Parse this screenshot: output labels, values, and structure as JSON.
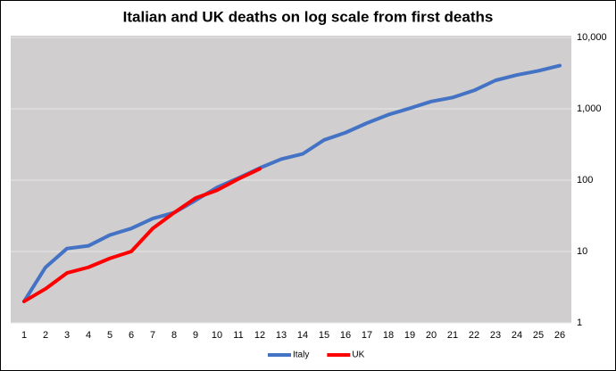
{
  "chart_data": {
    "type": "line",
    "title": "Italian and UK deaths on log scale from first deaths",
    "categories": [
      1,
      2,
      3,
      4,
      5,
      6,
      7,
      8,
      9,
      10,
      11,
      12,
      13,
      14,
      15,
      16,
      17,
      18,
      19,
      20,
      21,
      22,
      23,
      24,
      25,
      26
    ],
    "series": [
      {
        "name": "Italy",
        "color": "#4472c4",
        "values": [
          2,
          6,
          11,
          12,
          17,
          21,
          29,
          35,
          52,
          79,
          107,
          148,
          197,
          233,
          366,
          463,
          631,
          827,
          1016,
          1266,
          1441,
          1809,
          2503,
          2978,
          3405,
          4032
        ]
      },
      {
        "name": "UK",
        "color": "#ff0000",
        "values": [
          2,
          3,
          5,
          6,
          8,
          10,
          21,
          35,
          56,
          72,
          104,
          144,
          null,
          null,
          null,
          null,
          null,
          null,
          null,
          null,
          null,
          null,
          null,
          null,
          null,
          null
        ]
      }
    ],
    "ylim": [
      1,
      10000
    ],
    "yticks": [
      1,
      10,
      100,
      {
        "value": 1000,
        "label": "1,000"
      },
      {
        "value": 10000,
        "label": "10,000"
      }
    ],
    "log_scale": true,
    "grid": true,
    "legend": "bottom"
  }
}
